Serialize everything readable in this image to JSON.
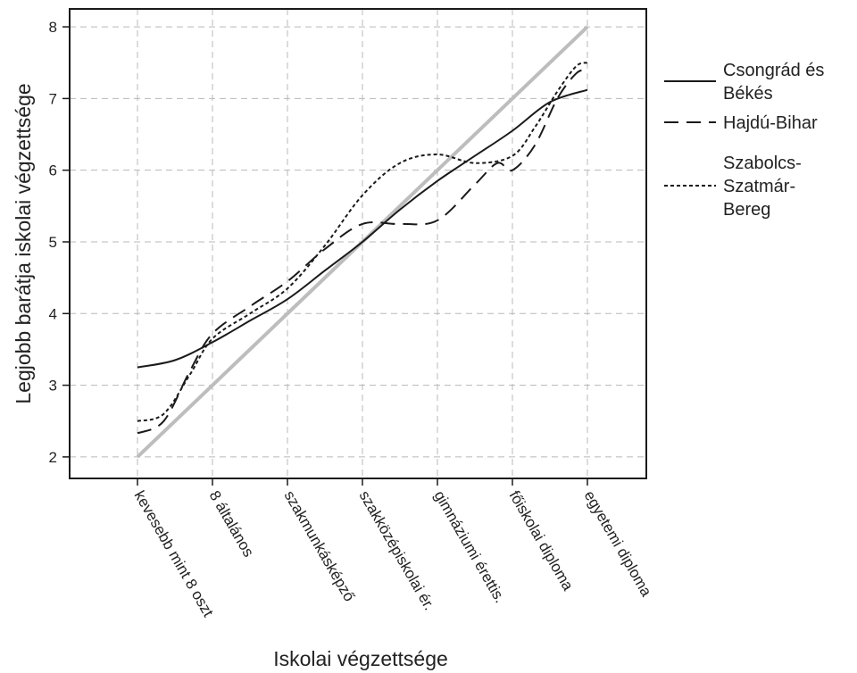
{
  "chart_data": {
    "type": "line",
    "xlabel": "Iskolai végzettsége",
    "ylabel": "Legjobb barátja iskolai végzettsége",
    "categories": [
      "kevesebb mint 8 oszt",
      "8 általános",
      "szakmunkásképző",
      "szakközépiskolai ér.",
      "gimnáziumi érettis.",
      "főiskolai diploma",
      "egyetemi diploma"
    ],
    "yticks": [
      2,
      3,
      4,
      5,
      6,
      7,
      8
    ],
    "ylim": [
      1.7,
      8.25
    ],
    "grid": true,
    "legend_position": "right",
    "series": [
      {
        "name": "Csongrád és Békés",
        "style": "solid",
        "color": "#1a1a1a",
        "x": [
          0,
          0.5,
          1,
          1.5,
          2,
          2.5,
          3,
          3.5,
          4,
          4.5,
          5,
          5.5,
          6
        ],
        "values": [
          3.25,
          3.35,
          3.6,
          3.9,
          4.2,
          4.6,
          5.0,
          5.45,
          5.85,
          6.2,
          6.55,
          6.95,
          7.12
        ]
      },
      {
        "name": "Hajdú-Bihar",
        "style": "dashed",
        "color": "#1a1a1a",
        "x": [
          0,
          0.35,
          0.7,
          1,
          1.5,
          2,
          2.5,
          3,
          3.5,
          4,
          4.5,
          4.8,
          5,
          5.3,
          5.6,
          5.85,
          6
        ],
        "values": [
          2.33,
          2.5,
          3.2,
          3.72,
          4.1,
          4.45,
          4.9,
          5.25,
          5.25,
          5.3,
          5.8,
          6.1,
          6.0,
          6.35,
          7.0,
          7.35,
          7.4
        ]
      },
      {
        "name": "Szabolcs-Szatmár-Bereg",
        "style": "dotted",
        "color": "#1a1a1a",
        "x": [
          0,
          0.35,
          0.7,
          1,
          1.5,
          2,
          2.5,
          3,
          3.5,
          4,
          4.5,
          5,
          5.3,
          5.6,
          5.85,
          6
        ],
        "values": [
          2.5,
          2.6,
          3.15,
          3.65,
          4.0,
          4.35,
          4.95,
          5.65,
          6.1,
          6.22,
          6.1,
          6.2,
          6.6,
          7.1,
          7.45,
          7.5
        ]
      },
      {
        "name": "",
        "style": "solid",
        "color": "#bdbdbd",
        "x": [
          0,
          6
        ],
        "values": [
          2.0,
          8.0
        ]
      }
    ]
  }
}
